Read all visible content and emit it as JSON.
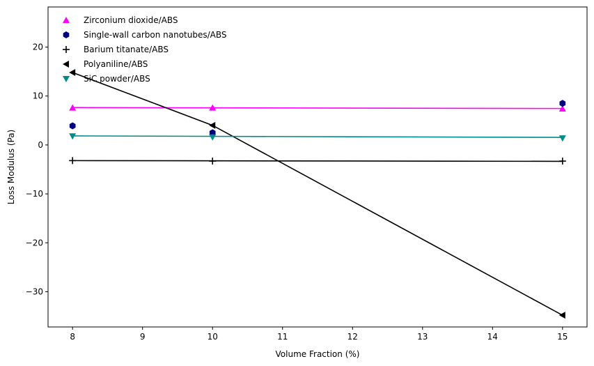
{
  "chart_data": {
    "type": "scatter",
    "title": "",
    "xlabel": "Volume Fraction (%)",
    "ylabel": "Loss Modulus (Pa)",
    "xlim": [
      7.65,
      15.35
    ],
    "ylim": [
      -37.2,
      28.2
    ],
    "xticks": [
      8,
      9,
      10,
      11,
      12,
      13,
      14,
      15
    ],
    "yticks": [
      -30,
      -20,
      -10,
      0,
      10,
      20
    ],
    "grid": false,
    "legend_position": "upper-left",
    "series": [
      {
        "name": "Zirconium dioxide/ABS",
        "marker": "triangle-up",
        "color": "#ff00ff",
        "x": [
          8,
          10,
          15
        ],
        "y": [
          7.6,
          7.6,
          7.4
        ],
        "fit": [
          [
            8,
            7.65
          ],
          [
            15,
            7.45
          ]
        ]
      },
      {
        "name": "Single-wall carbon nanotubes/ABS",
        "marker": "hexagon",
        "color": "#000080",
        "x": [
          8,
          10,
          15
        ],
        "y": [
          3.9,
          2.5,
          8.5
        ],
        "fit": null
      },
      {
        "name": "Barium titanate/ABS",
        "marker": "plus",
        "color": "#000000",
        "x": [
          8,
          10,
          15
        ],
        "y": [
          -3.2,
          -3.3,
          -3.3
        ],
        "fit": [
          [
            8,
            -3.2
          ],
          [
            15,
            -3.35
          ]
        ]
      },
      {
        "name": "Polyaniline/ABS",
        "marker": "triangle-left",
        "color": "#000000",
        "x": [
          8,
          10,
          15
        ],
        "y": [
          14.8,
          4.0,
          -34.8
        ],
        "fit": [
          [
            8,
            14.8
          ],
          [
            10,
            4.0
          ],
          [
            15,
            -34.8
          ]
        ]
      },
      {
        "name": "SiC powder/ABS",
        "marker": "triangle-down",
        "color": "#008b8b",
        "x": [
          8,
          10,
          15
        ],
        "y": [
          1.8,
          1.6,
          1.4
        ],
        "fit": [
          [
            8,
            1.85
          ],
          [
            15,
            1.55
          ]
        ]
      }
    ]
  }
}
